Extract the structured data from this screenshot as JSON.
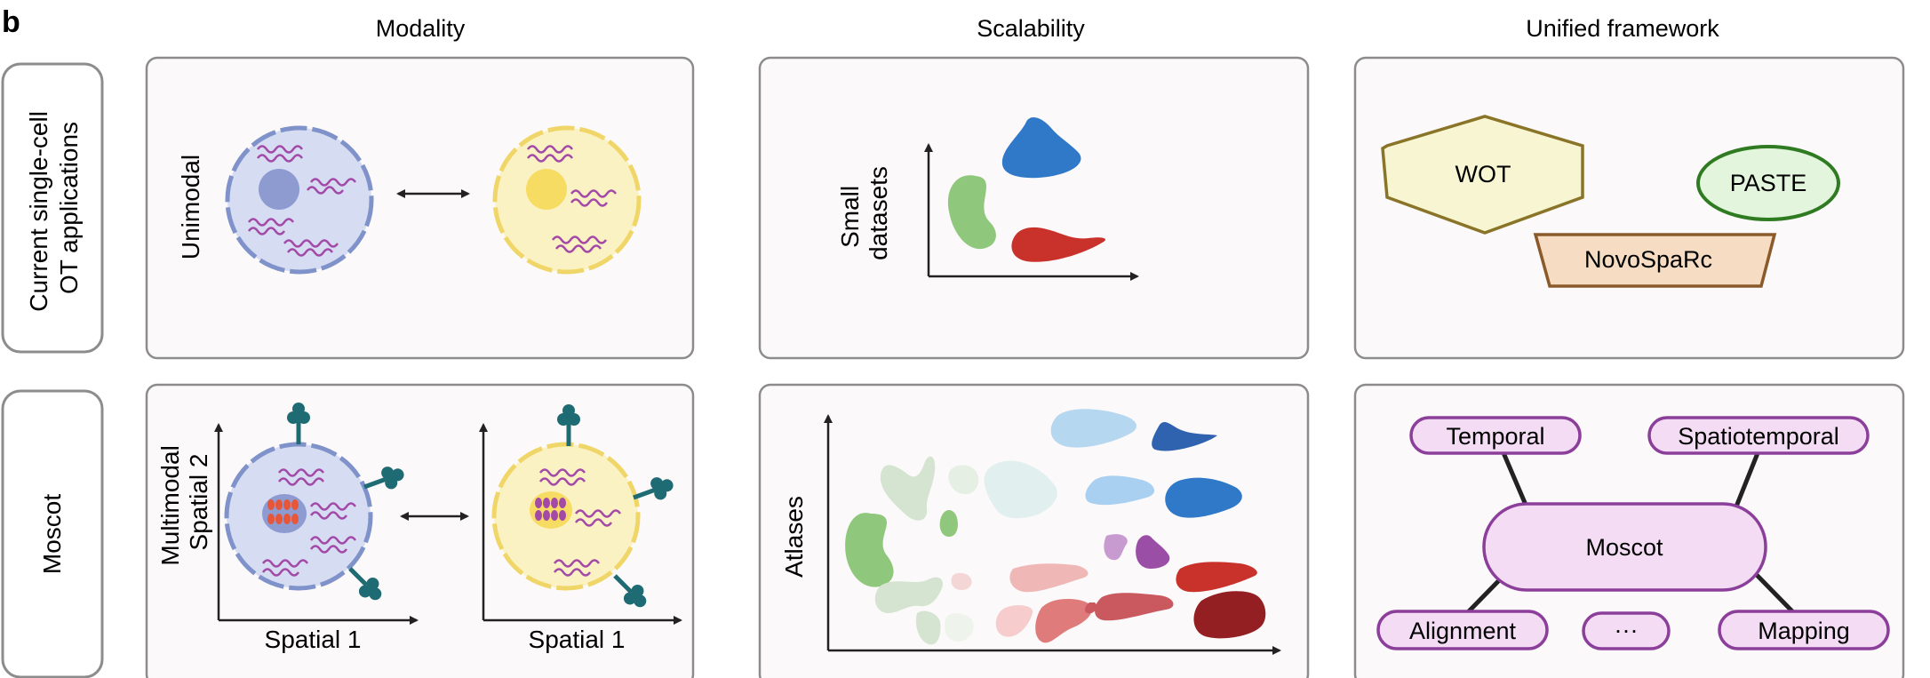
{
  "panel_letter": "b",
  "columns": [
    "Modality",
    "Scalability",
    "Unified framework"
  ],
  "rows": {
    "current": [
      "Current single-cell",
      "OT applications"
    ],
    "moscot": "Moscot"
  },
  "modality": {
    "unimodal_label": "Unimodal",
    "multimodal_label": "Multimodal",
    "spatial2_label": "Spatial 2",
    "spatial1_left": "Spatial 1",
    "spatial1_right": "Spatial 1"
  },
  "scalability": {
    "small_label": [
      "Small",
      "datasets"
    ],
    "atlases_label": "Atlases"
  },
  "framework_current": {
    "wot": "WOT",
    "paste": "PASTE",
    "novosparc": "NovoSpaRc"
  },
  "framework_moscot": {
    "center": "Moscot",
    "temporal": "Temporal",
    "spatiotemporal": "Spatiotemporal",
    "alignment": "Alignment",
    "ellipsis": "···",
    "mapping": "Mapping"
  },
  "colors": {
    "panel_bg": "#fcf9fa",
    "panel_border": "#8c8c8c",
    "blue_cell": "#d6dcf2",
    "blue_cell_border": "#7f92c9",
    "yellow_cell": "#fbf2c4",
    "yellow_cell_border": "#f0d668",
    "rna": "#a34aa8",
    "protein": "#1f6b73",
    "wot_fill": "#f8f6d2",
    "wot_border": "#8a7428",
    "paste_fill": "#e3f5dc",
    "paste_border": "#2f7b22",
    "novo_fill": "#f6dcc2",
    "novo_border": "#8a5a2b",
    "moscot_fill": "#f5dcf5",
    "moscot_border": "#8b3f9a"
  }
}
